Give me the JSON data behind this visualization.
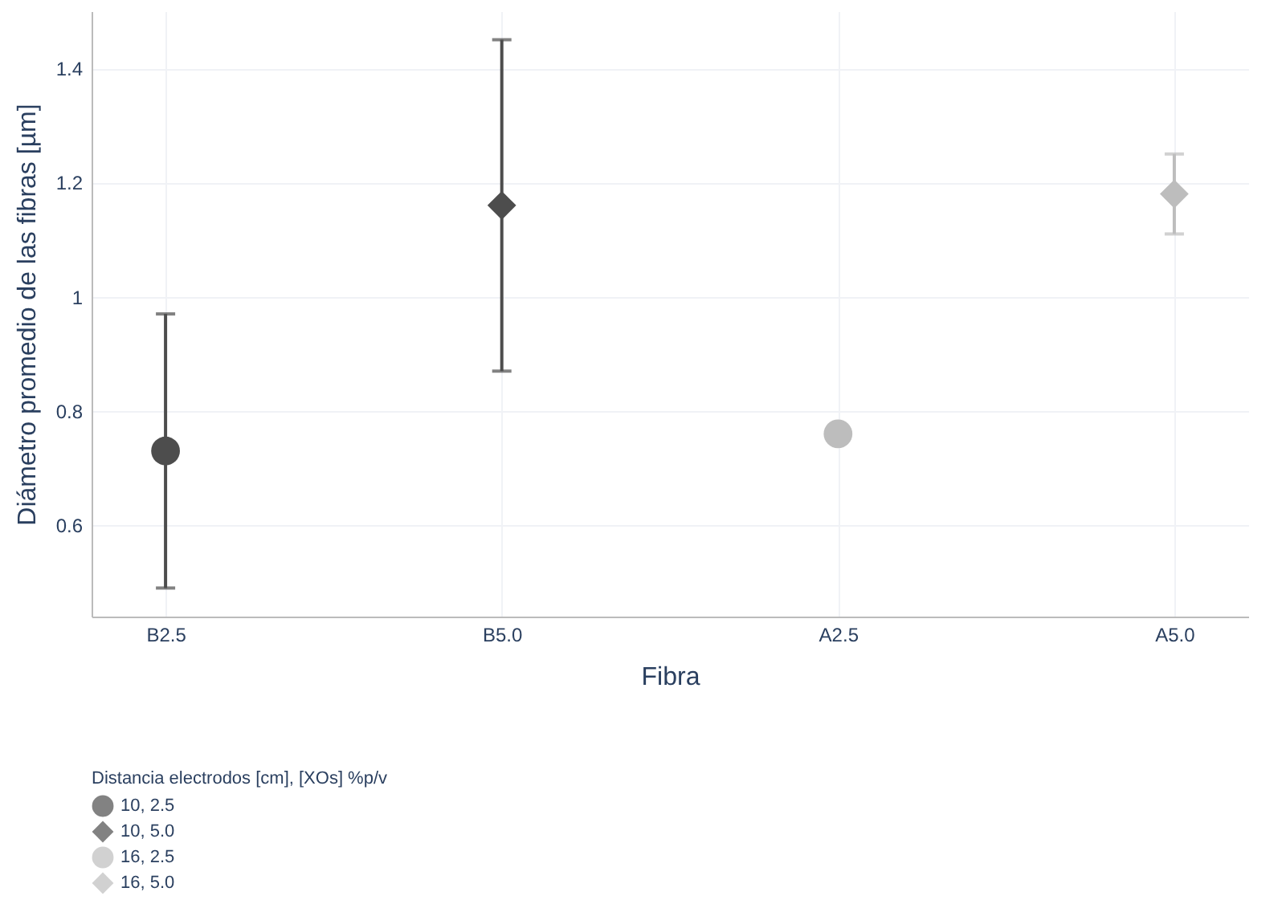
{
  "chart_data": {
    "type": "scatter",
    "xlabel": "Fibra",
    "ylabel": "Diámetro promedio de las fibras [µm]",
    "legend_title": "Distancia electrodos [cm], [XOs] %p/v",
    "categories": [
      "B2.5",
      "B5.0",
      "A2.5",
      "A5.0"
    ],
    "series": [
      {
        "name": "10, 2.5",
        "color": "#4d4d4d",
        "marker": "circle",
        "x": [
          "B2.5"
        ],
        "values": [
          0.73
        ],
        "errors": [
          [
            0.49,
            0.97
          ]
        ]
      },
      {
        "name": "10, 5.0",
        "color": "#4d4d4d",
        "marker": "diamond",
        "x": [
          "B5.0"
        ],
        "values": [
          1.16
        ],
        "errors": [
          [
            0.87,
            1.45
          ]
        ]
      },
      {
        "name": "16, 2.5",
        "color": "#bdbdbd",
        "marker": "circle",
        "x": [
          "A2.5"
        ],
        "values": [
          0.76
        ],
        "errors": [
          null
        ]
      },
      {
        "name": "16, 5.0",
        "color": "#bdbdbd",
        "marker": "diamond",
        "x": [
          "A5.0"
        ],
        "values": [
          1.18
        ],
        "errors": [
          [
            1.11,
            1.25
          ]
        ]
      }
    ],
    "ylim": [
      0.44,
      1.5
    ],
    "yticks": [
      0.6,
      0.8,
      1,
      1.2,
      1.4
    ],
    "grid": true,
    "legend": "bottom"
  }
}
